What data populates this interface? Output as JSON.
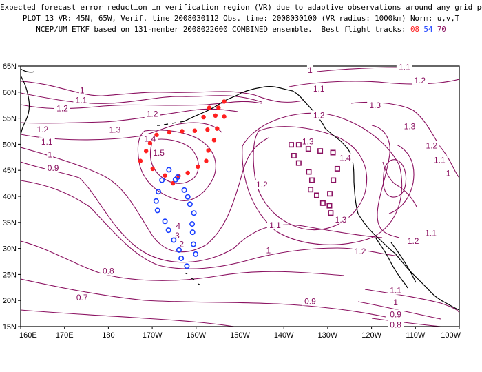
{
  "header": {
    "line1": "Expected forecast error reduction in verification region (VR) due to adaptive observations around any grid point.",
    "line2": "PLOT 13 VR: 45N, 65W, Verif. time 2008030112 Obs. time: 2008030100 (VR radius: 1000km) Norm: u,v,T",
    "line3_prefix": "NCEP/UM ETKF based on 131-member 2008022600 COMBINED ensemble.  Best flight tracks: ",
    "tracks": [
      "08",
      "54",
      "70"
    ]
  },
  "axes": {
    "lat_labels": [
      "65N",
      "60N",
      "55N",
      "50N",
      "45N",
      "40N",
      "35N",
      "30N",
      "25N",
      "20N",
      "15N"
    ],
    "lon_labels": [
      "160E",
      "170E",
      "180",
      "170W",
      "160W",
      "150W",
      "140W",
      "130W",
      "120W",
      "110W",
      "100W"
    ]
  },
  "contour_labels": [
    {
      "text": "1.2",
      "lon": -190.5,
      "lat": 56.7
    },
    {
      "text": "1.1",
      "lon": -186.2,
      "lat": 58.3
    },
    {
      "text": "1",
      "lon": -186,
      "lat": 60.2
    },
    {
      "text": "1.2",
      "lon": -195,
      "lat": 52.7
    },
    {
      "text": "1.1",
      "lon": -194,
      "lat": 50.3
    },
    {
      "text": "1",
      "lon": -193.3,
      "lat": 47.9
    },
    {
      "text": "0.9",
      "lon": -192.6,
      "lat": 45.3
    },
    {
      "text": "1.3",
      "lon": -178.5,
      "lat": 52.6
    },
    {
      "text": "1.2",
      "lon": -170,
      "lat": 55.7
    },
    {
      "text": "1.4",
      "lon": -170.5,
      "lat": 50.9
    },
    {
      "text": "1.5",
      "lon": -168.5,
      "lat": 48.2
    },
    {
      "text": "1.2",
      "lon": -145,
      "lat": 42.1
    },
    {
      "text": "1.1",
      "lon": -142,
      "lat": 34.3
    },
    {
      "text": "1",
      "lon": -143.5,
      "lat": 29.5
    },
    {
      "text": "0.8",
      "lon": -180,
      "lat": 25.5
    },
    {
      "text": "0.7",
      "lon": -186,
      "lat": 20.4
    },
    {
      "text": "0.9",
      "lon": -134,
      "lat": 19.7
    },
    {
      "text": "1",
      "lon": -134,
      "lat": 64.1
    },
    {
      "text": "1.1",
      "lon": -132,
      "lat": 60.5
    },
    {
      "text": "1.2",
      "lon": -132,
      "lat": 55.4
    },
    {
      "text": "1.3",
      "lon": -134.5,
      "lat": 50.4
    },
    {
      "text": "1.4",
      "lon": -126,
      "lat": 47.2
    },
    {
      "text": "1.3",
      "lon": -127,
      "lat": 35.4
    },
    {
      "text": "1.2",
      "lon": -122.6,
      "lat": 29.3
    },
    {
      "text": "1.3",
      "lon": -119.2,
      "lat": 57.3
    },
    {
      "text": "1.3",
      "lon": -111.3,
      "lat": 53.3
    },
    {
      "text": "1.2",
      "lon": -106.3,
      "lat": 49.6
    },
    {
      "text": "1.1",
      "lon": -104.5,
      "lat": 46.8
    },
    {
      "text": "1",
      "lon": -102.5,
      "lat": 44.3
    },
    {
      "text": "1.2",
      "lon": -110.5,
      "lat": 31.3
    },
    {
      "text": "1.1",
      "lon": -106.5,
      "lat": 32.8
    },
    {
      "text": "1.1",
      "lon": -114.5,
      "lat": 21.8
    },
    {
      "text": "0.9",
      "lon": -114.5,
      "lat": 17.2
    },
    {
      "text": "1",
      "lon": -114.5,
      "lat": 19.5
    },
    {
      "text": "0.8",
      "lon": -114.5,
      "lat": 15.2
    },
    {
      "text": "1.2",
      "lon": -109,
      "lat": 62.1
    },
    {
      "text": "1.1",
      "lon": -112.5,
      "lat": 64.7
    },
    {
      "text": "4",
      "lon": -164.1,
      "lat": 34.2
    },
    {
      "text": "3",
      "lon": -164.3,
      "lat": 32.3
    },
    {
      "text": "2",
      "lon": -163.3,
      "lat": 30.7
    }
  ],
  "flight_tracks": [
    {
      "id": "08",
      "color": "#ff2020",
      "symbol": "dot",
      "points": [
        [
          -172.7,
          46.8
        ],
        [
          -171.4,
          48.7
        ],
        [
          -170.5,
          50.2
        ],
        [
          -169,
          51.8
        ],
        [
          -166.1,
          52.3
        ],
        [
          -163.2,
          52.5
        ],
        [
          -160.3,
          52.6
        ],
        [
          -157.4,
          52.8
        ],
        [
          -158.3,
          55.2
        ],
        [
          -155.6,
          55.5
        ],
        [
          -153.6,
          55.3
        ],
        [
          -154.9,
          57
        ],
        [
          -153.6,
          58.2
        ],
        [
          -157,
          57
        ],
        [
          -155.2,
          53
        ],
        [
          -155.9,
          50.8
        ],
        [
          -157.2,
          48.8
        ],
        [
          -157.7,
          46.8
        ],
        [
          -159.6,
          45.7
        ],
        [
          -161.9,
          44.5
        ],
        [
          -164,
          43.9
        ],
        [
          -165.3,
          42.5
        ],
        [
          -167.1,
          44
        ],
        [
          -169.9,
          45.3
        ]
      ]
    },
    {
      "id": "54",
      "color": "#1a3fff",
      "symbol": "circle",
      "points": [
        [
          -166.2,
          45.1
        ],
        [
          -164.7,
          43.2
        ],
        [
          -167.8,
          43.1
        ],
        [
          -168.6,
          40.9
        ],
        [
          -169.1,
          39.1
        ],
        [
          -168.8,
          37.3
        ],
        [
          -167.1,
          35.2
        ],
        [
          -166.3,
          33.5
        ],
        [
          -165.1,
          31.6
        ],
        [
          -163.9,
          29.7
        ],
        [
          -163.4,
          28.1
        ],
        [
          -162.1,
          26.6
        ],
        [
          -160.1,
          28.9
        ],
        [
          -160.6,
          30.8
        ],
        [
          -160.8,
          33.1
        ],
        [
          -160.9,
          34.7
        ],
        [
          -160.5,
          36.8
        ],
        [
          -161.4,
          38.5
        ],
        [
          -161.9,
          39.9
        ],
        [
          -162.7,
          41.2
        ],
        [
          -164.2,
          43.7
        ]
      ]
    },
    {
      "id": "70",
      "color": "#8a1060",
      "symbol": "square",
      "points": [
        [
          -138.3,
          49.9
        ],
        [
          -136.6,
          49.9
        ],
        [
          -134.4,
          49.1
        ],
        [
          -131.7,
          48.7
        ],
        [
          -128.8,
          48.4
        ],
        [
          -127.8,
          45.3
        ],
        [
          -128.7,
          43.1
        ],
        [
          -129.5,
          40.5
        ],
        [
          -129.6,
          38.2
        ],
        [
          -129.3,
          36.8
        ],
        [
          -131.1,
          38.7
        ],
        [
          -132.5,
          40.2
        ],
        [
          -133.9,
          41.3
        ],
        [
          -133.6,
          43.1
        ],
        [
          -134.3,
          44.7
        ],
        [
          -136.6,
          46.4
        ],
        [
          -137.7,
          47.8
        ]
      ]
    }
  ]
}
